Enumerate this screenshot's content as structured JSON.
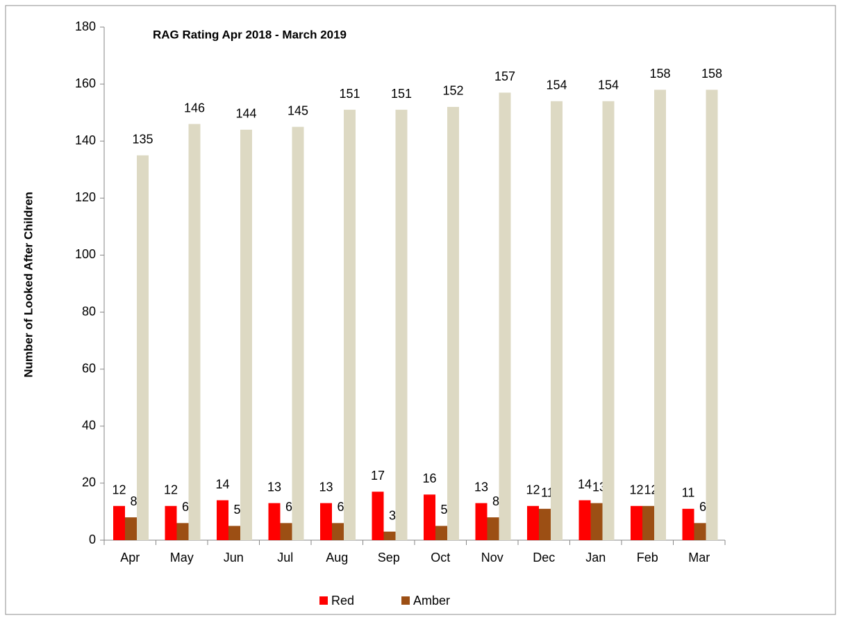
{
  "chart_data": {
    "type": "bar",
    "title": "RAG Rating Apr 2018 - March 2019",
    "y_label": "Number of Looked After Children",
    "categories": [
      "Apr",
      "May",
      "Jun",
      "Jul",
      "Aug",
      "Sep",
      "Oct",
      "Nov",
      "Dec",
      "Jan",
      "Feb",
      "Mar"
    ],
    "series": [
      {
        "name": "Red",
        "color": "#ff0000",
        "values": [
          12,
          12,
          14,
          13,
          13,
          17,
          16,
          13,
          12,
          14,
          12,
          11
        ]
      },
      {
        "name": "Amber",
        "color": "#9c4f14",
        "values": [
          8,
          6,
          5,
          6,
          6,
          3,
          5,
          8,
          11,
          13,
          12,
          6
        ]
      },
      {
        "color": "#ddd9c3",
        "values": [
          135,
          146,
          144,
          145,
          151,
          151,
          152,
          157,
          154,
          154,
          158,
          158
        ]
      }
    ],
    "ylim": [
      0,
      180
    ],
    "yticks": [
      0,
      20,
      40,
      60,
      80,
      100,
      120,
      140,
      160,
      180
    ],
    "grid": false,
    "legend": "bottom"
  }
}
